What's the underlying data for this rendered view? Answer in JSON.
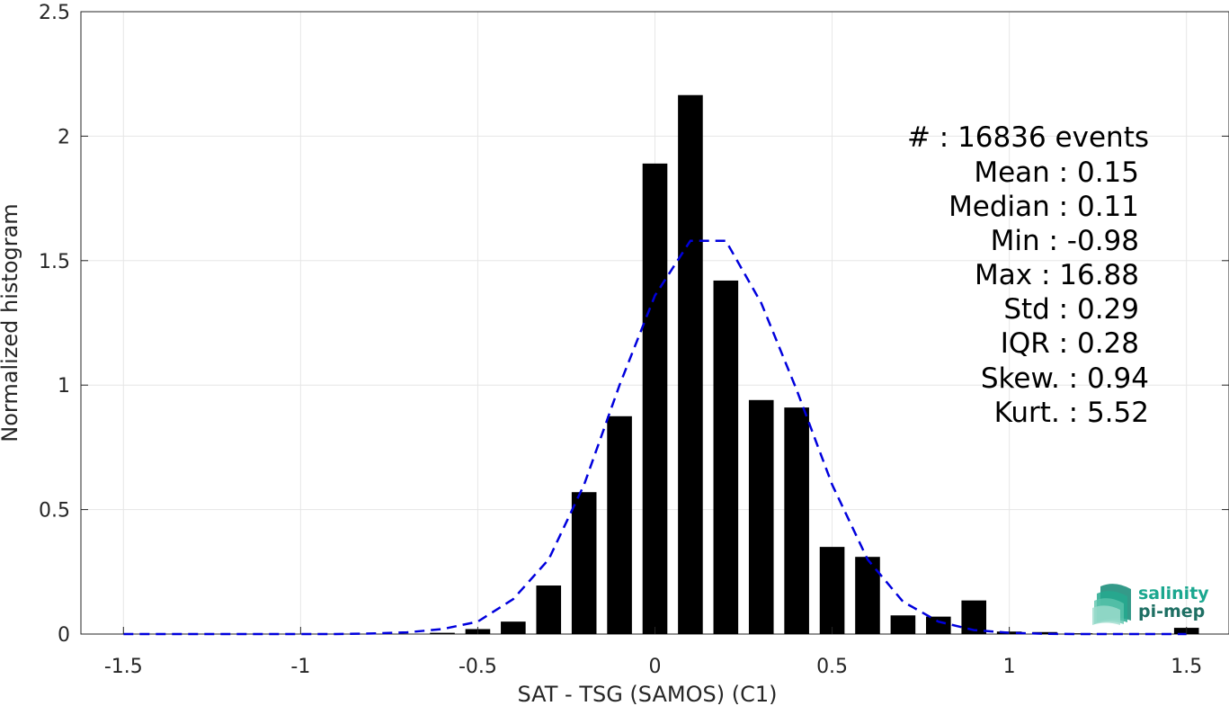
{
  "chart_data": {
    "type": "bar",
    "xlabel": "SAT - TSG (SAMOS) (C1)",
    "ylabel": "Normalized histogram",
    "xlim": [
      -1.62,
      1.62
    ],
    "ylim": [
      0,
      2.5
    ],
    "xticks": [
      -1.5,
      -1,
      -0.5,
      0,
      0.5,
      1,
      1.5
    ],
    "xtick_labels": [
      "-1.5",
      "-1",
      "-0.5",
      "0",
      "0.5",
      "1",
      "1.5"
    ],
    "yticks": [
      0,
      0.5,
      1,
      1.5,
      2,
      2.5
    ],
    "ytick_labels": [
      "0",
      "0.5",
      "1",
      "1.5",
      "2",
      "2.5"
    ],
    "grid": true,
    "bar_width": 0.07,
    "series": [
      {
        "name": "histogram",
        "style": "bar",
        "color": "#000000",
        "x": [
          -0.6,
          -0.5,
          -0.4,
          -0.3,
          -0.2,
          -0.1,
          0.0,
          0.1,
          0.2,
          0.3,
          0.4,
          0.5,
          0.6,
          0.7,
          0.8,
          0.9,
          1.0,
          1.1,
          1.2,
          1.3,
          1.4,
          1.5
        ],
        "values": [
          0.005,
          0.02,
          0.05,
          0.195,
          0.57,
          0.875,
          1.89,
          2.165,
          1.42,
          0.94,
          0.91,
          0.35,
          0.31,
          0.075,
          0.07,
          0.135,
          0.01,
          0.008,
          0.003,
          0.002,
          0.002,
          0.025
        ]
      },
      {
        "name": "gaussian fit",
        "style": "dashed-line",
        "color": "#0000dd",
        "x": [
          -1.5,
          -1.4,
          -1.3,
          -1.2,
          -1.1,
          -1.0,
          -0.9,
          -0.8,
          -0.7,
          -0.6,
          -0.5,
          -0.4,
          -0.3,
          -0.2,
          -0.1,
          0.0,
          0.1,
          0.2,
          0.3,
          0.4,
          0.5,
          0.6,
          0.7,
          0.8,
          0.9,
          1.0,
          1.1,
          1.2,
          1.3,
          1.4,
          1.5
        ],
        "values": [
          0.0,
          0.0,
          0.0,
          0.0,
          0.0,
          0.0,
          0.0,
          0.002,
          0.007,
          0.02,
          0.05,
          0.14,
          0.3,
          0.6,
          1.0,
          1.36,
          1.58,
          1.58,
          1.33,
          0.98,
          0.6,
          0.3,
          0.13,
          0.05,
          0.016,
          0.005,
          0.001,
          0.0,
          0.0,
          0.0,
          0.0
        ]
      }
    ]
  },
  "stats": {
    "count": "#  : 16836 events",
    "mean": "Mean : 0.15",
    "median": "Median : 0.11",
    "min": "Min : -0.98",
    "max": "Max : 16.88",
    "std": "Std : 0.29",
    "iqr": "IQR : 0.28",
    "skew": "Skew. : 0.94",
    "kurt": "Kurt. : 5.52"
  },
  "logo": {
    "line1": "salinity",
    "line2": "pi-mep",
    "color1": "#1aa78f",
    "color2": "#1e6f63"
  }
}
